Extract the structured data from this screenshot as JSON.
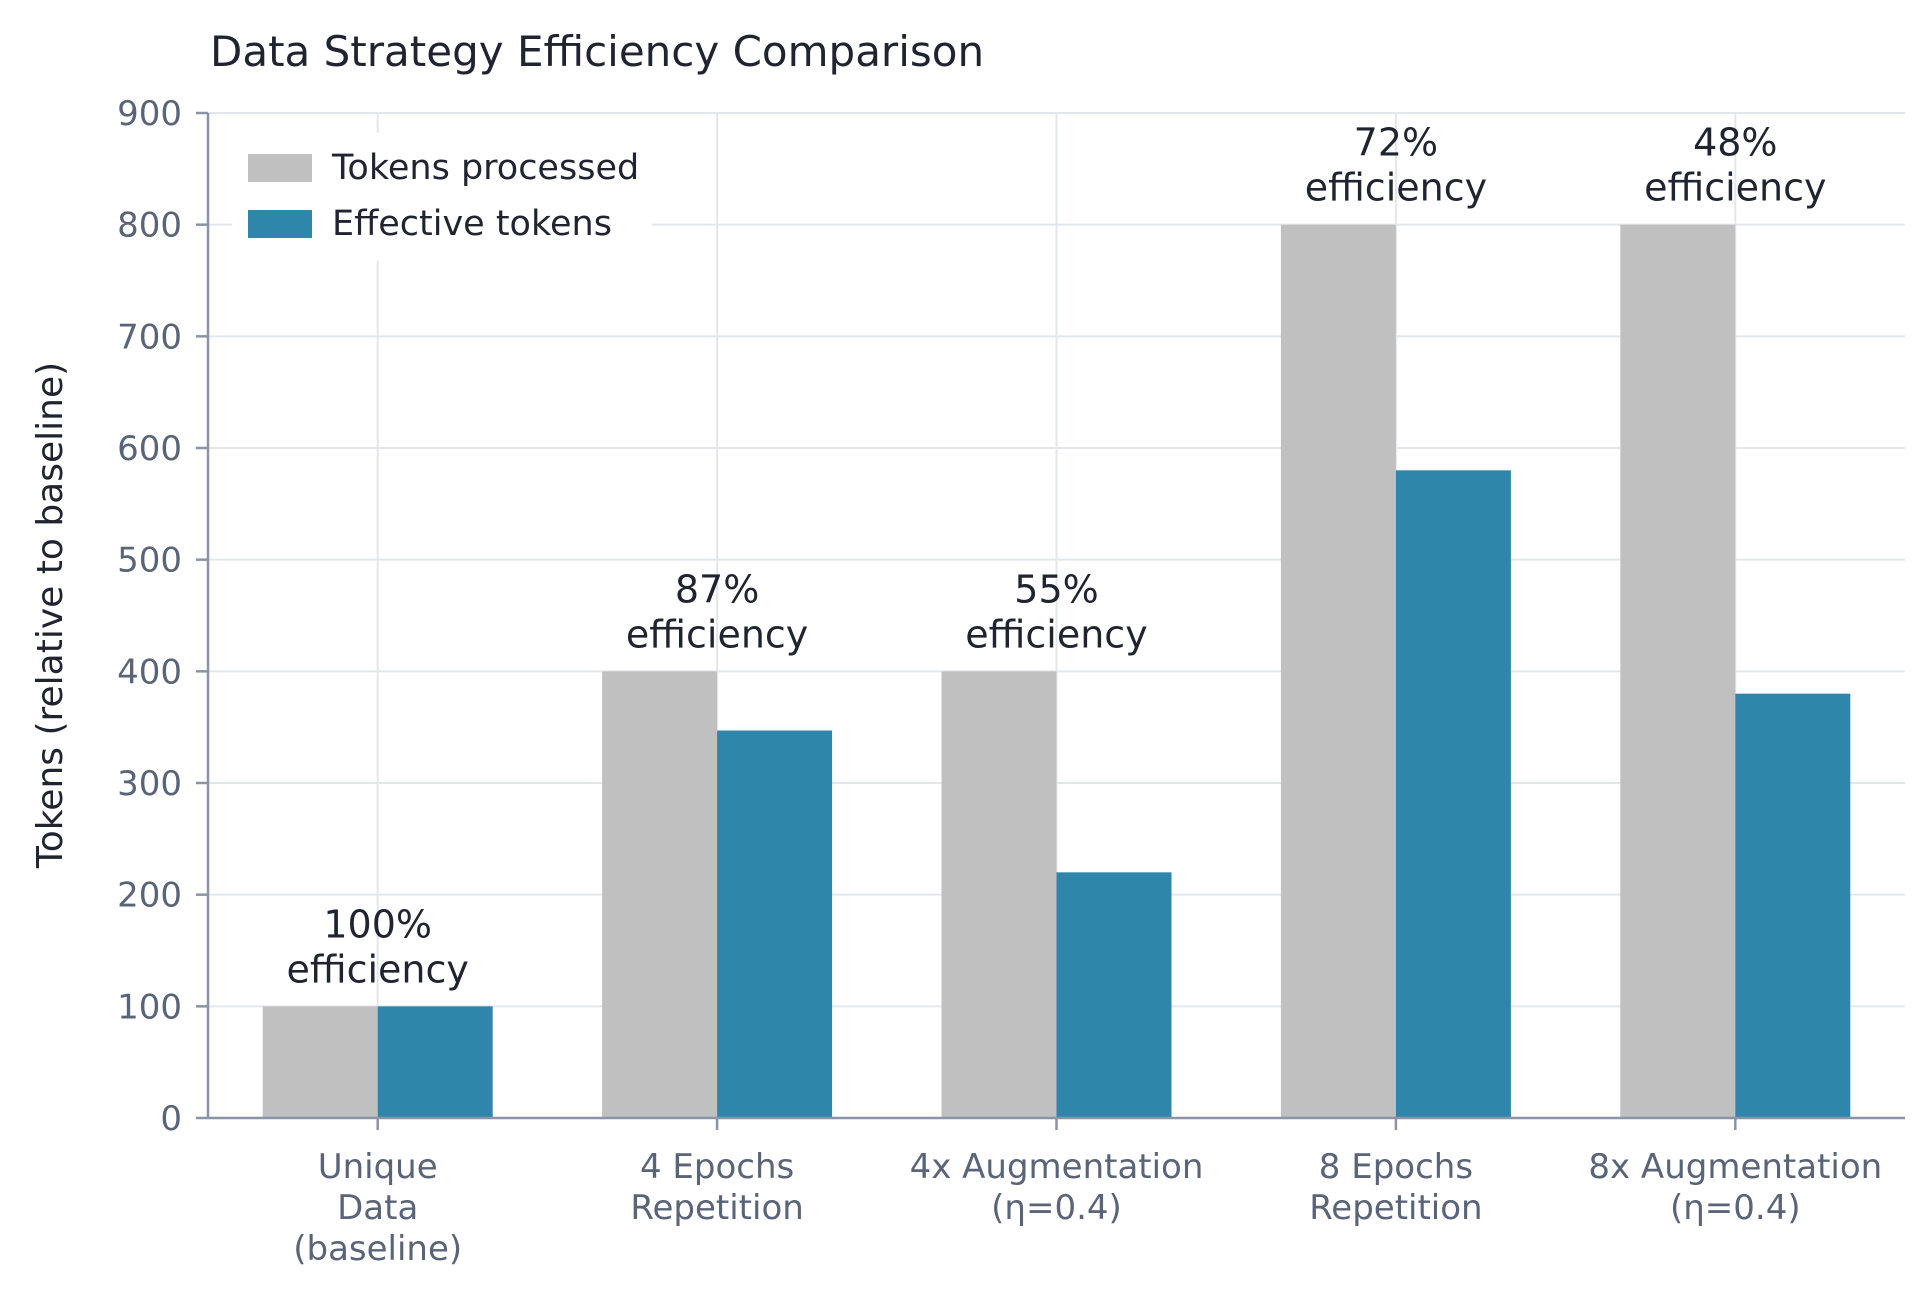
{
  "chart_data": {
    "type": "bar",
    "title": "Data Strategy Efficiency Comparison",
    "xlabel": "",
    "ylabel": "Tokens (relative to baseline)",
    "ylim": [
      0,
      900
    ],
    "yticks": [
      0,
      100,
      200,
      300,
      400,
      500,
      600,
      700,
      800,
      900
    ],
    "grid": true,
    "legend_position": "top-left",
    "categories": [
      [
        "Unique",
        "Data",
        "(baseline)"
      ],
      [
        "4 Epochs",
        "Repetition"
      ],
      [
        "4x Augmentation",
        "(η=0.4)"
      ],
      [
        "8 Epochs",
        "Repetition"
      ],
      [
        "8x Augmentation",
        "(η=0.4)"
      ]
    ],
    "series": [
      {
        "name": "Tokens processed",
        "color": "#c0c0c0",
        "values": [
          100,
          400,
          400,
          800,
          800
        ]
      },
      {
        "name": "Effective tokens",
        "color": "#2e86aa",
        "values": [
          100,
          347,
          220,
          580,
          380
        ]
      }
    ],
    "annotations": [
      [
        "100%",
        "efficiency"
      ],
      [
        "87%",
        "efficiency"
      ],
      [
        "55%",
        "efficiency"
      ],
      [
        "72%",
        "efficiency"
      ],
      [
        "48%",
        "efficiency"
      ]
    ]
  }
}
